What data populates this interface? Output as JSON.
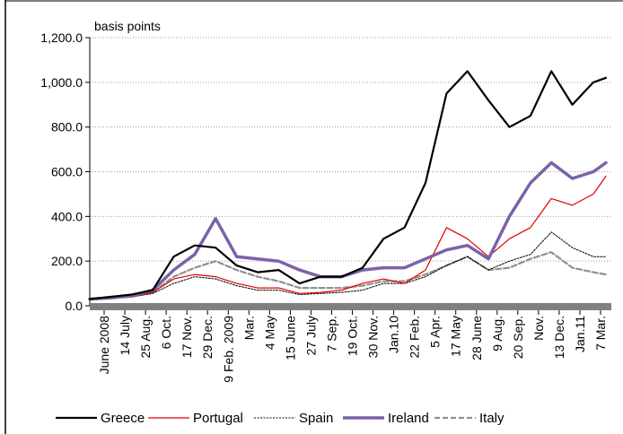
{
  "chart_data": {
    "type": "line",
    "ylabel": "basis points",
    "ylim": [
      0,
      1200
    ],
    "yticks": [
      0,
      200,
      400,
      600,
      800,
      1000,
      1200
    ],
    "ytick_labels": [
      "0.0",
      "200.0",
      "400.0",
      "600.0",
      "800.0",
      "1,000.0",
      "1,200.0"
    ],
    "grid": "horizontal dotted",
    "legend_position": "bottom",
    "x_tick_labels": [
      "June 2008",
      "14 July",
      "25 Aug.",
      "6 Oct.",
      "17 Nov.",
      "29 Dec.",
      "9 Feb. 2009",
      "Mar.",
      "4 May",
      "15 June",
      "27 July",
      "7 Sep.",
      "19 Oct.",
      "30 Nov.",
      "Jan.10",
      "22 Feb.",
      "5 Apr.",
      "17 May",
      "28 June",
      "9 Aug.",
      "20 Sep.",
      "Nov.",
      "13 Dec.",
      "Jan.11",
      "7 Mar."
    ],
    "x": [
      0,
      1,
      2,
      3,
      4,
      5,
      6,
      7,
      8,
      9,
      10,
      11,
      12,
      13,
      14,
      15,
      16,
      17,
      18,
      19,
      20,
      21,
      22,
      23,
      24,
      24.6
    ],
    "series": [
      {
        "name": "Greece",
        "color": "#000000",
        "width": 2.2,
        "dash": "",
        "values": [
          30,
          40,
          50,
          70,
          220,
          270,
          260,
          180,
          150,
          160,
          100,
          130,
          130,
          170,
          300,
          350,
          550,
          950,
          1050,
          920,
          800,
          850,
          1050,
          900,
          1000,
          1020
        ]
      },
      {
        "name": "Portugal",
        "color": "#e00000",
        "width": 1.2,
        "dash": "",
        "values": [
          30,
          35,
          40,
          60,
          120,
          140,
          130,
          100,
          80,
          80,
          55,
          60,
          70,
          100,
          120,
          100,
          160,
          350,
          300,
          220,
          300,
          350,
          480,
          450,
          500,
          580
        ]
      },
      {
        "name": "Spain",
        "color": "#000000",
        "width": 1,
        "dash": "2,1.5",
        "values": [
          30,
          35,
          40,
          55,
          100,
          130,
          120,
          90,
          70,
          70,
          50,
          55,
          60,
          70,
          100,
          100,
          130,
          180,
          220,
          160,
          200,
          230,
          330,
          260,
          220,
          220
        ]
      },
      {
        "name": "Ireland",
        "color": "#7b62a8",
        "width": 3.5,
        "dash": "",
        "values": [
          30,
          35,
          45,
          70,
          160,
          230,
          390,
          220,
          210,
          200,
          160,
          130,
          130,
          160,
          170,
          170,
          210,
          250,
          270,
          210,
          400,
          550,
          640,
          570,
          600,
          640
        ]
      },
      {
        "name": "Italy",
        "color": "#909090",
        "width": 2.2,
        "dash": "6,3",
        "values": [
          30,
          35,
          40,
          60,
          130,
          170,
          200,
          160,
          130,
          110,
          80,
          80,
          80,
          90,
          110,
          110,
          140,
          180,
          220,
          160,
          170,
          210,
          240,
          170,
          150,
          140
        ]
      }
    ]
  }
}
